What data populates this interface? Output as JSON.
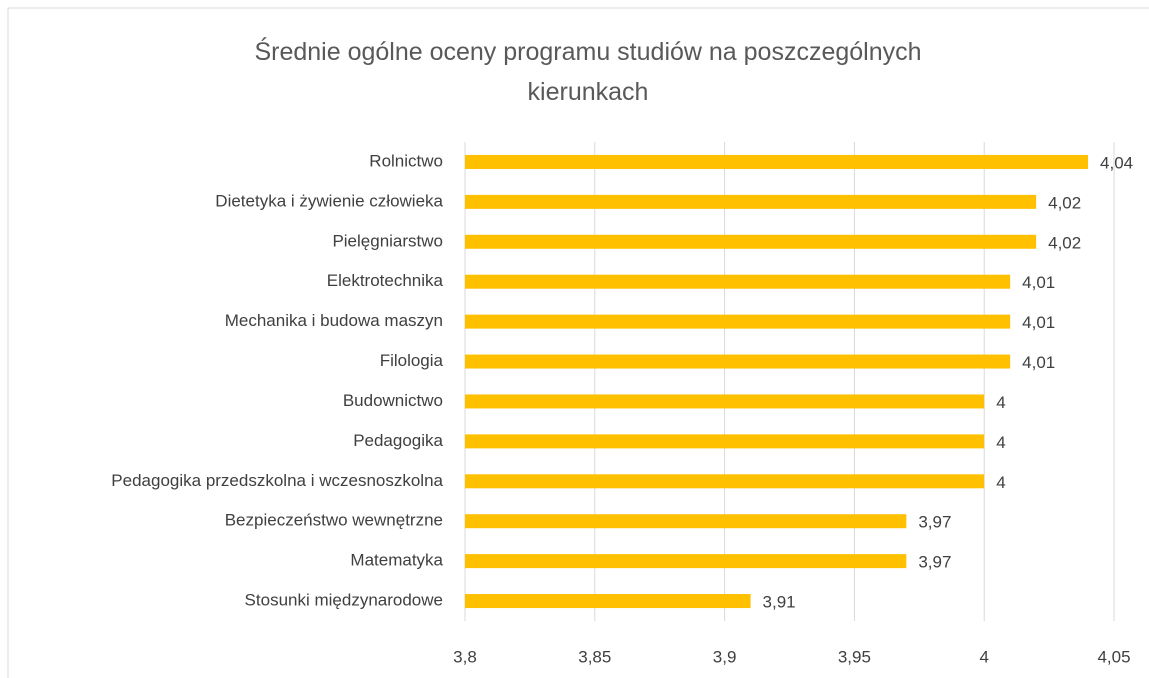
{
  "chart_data": {
    "type": "bar",
    "orientation": "horizontal",
    "title": "Średnie ogólne oceny programu studiów na poszczególnych kierunkach",
    "categories": [
      "Rolnictwo",
      "Dietetyka i żywienie człowieka",
      "Pielęgniarstwo",
      "Elektrotechnika",
      "Mechanika i budowa maszyn",
      "Filologia",
      "Budownictwo",
      "Pedagogika",
      "Pedagogika przedszkolna i wczesnoszkolna",
      "Bezpieczeństwo wewnętrzne",
      "Matematyka",
      "Stosunki międzynarodowe"
    ],
    "values": [
      4.04,
      4.02,
      4.02,
      4.01,
      4.01,
      4.01,
      4,
      4,
      4,
      3.97,
      3.97,
      3.91
    ],
    "value_labels": [
      "4,04",
      "4,02",
      "4,02",
      "4,01",
      "4,01",
      "4,01",
      "4",
      "4",
      "4",
      "3,97",
      "3,97",
      "3,91"
    ],
    "color": "#ffc000",
    "xlim": [
      3.8,
      4.05
    ],
    "xticks": [
      {
        "value": 3.8,
        "label": "3,8"
      },
      {
        "value": 3.85,
        "label": "3,85"
      },
      {
        "value": 3.9,
        "label": "3,9"
      },
      {
        "value": 3.95,
        "label": "3,95"
      },
      4,
      {
        "value": 4.05,
        "label": "4,05"
      }
    ],
    "grid": true
  }
}
